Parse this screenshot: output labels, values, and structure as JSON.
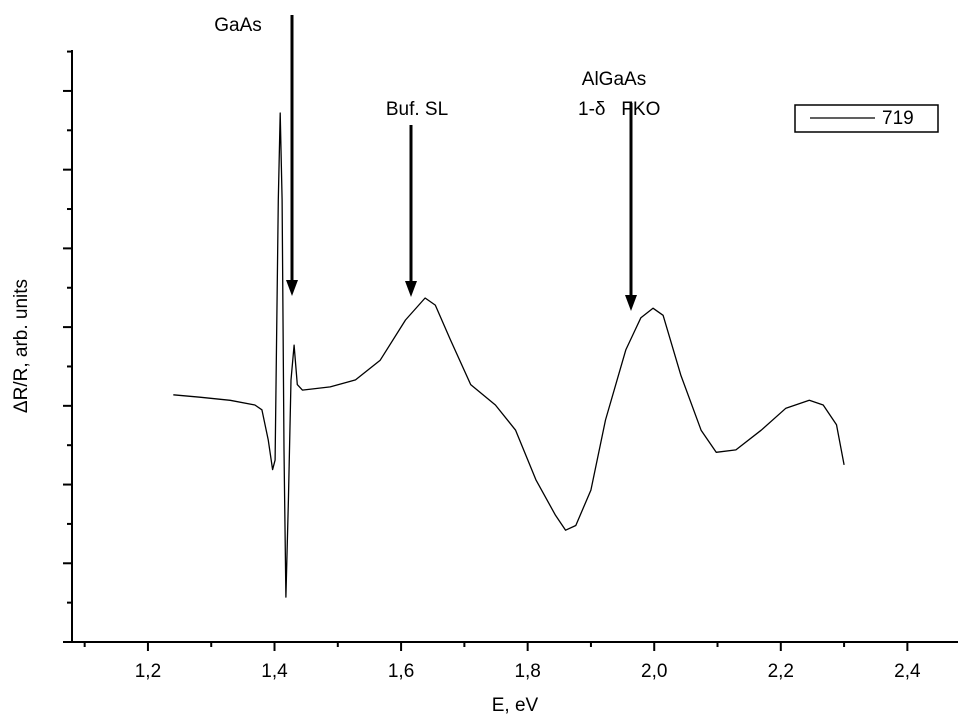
{
  "chart_data": {
    "type": "line",
    "x_label": "E, eV",
    "y_label": "ΔR/R, arb. units",
    "annotations": [
      "GaAs",
      "Buf. SL",
      "AlGaAs",
      "1-δ   FKO"
    ],
    "xlim": [
      1.08,
      2.48
    ],
    "xticks": [
      {
        "value": 1.2,
        "label": "1,2"
      },
      {
        "value": 1.4,
        "label": "1,4"
      },
      {
        "value": 1.6,
        "label": "1,6"
      },
      {
        "value": 1.8,
        "label": "1,8"
      },
      {
        "value": 2.0,
        "label": "2,0"
      },
      {
        "value": 2.2,
        "label": "2,2"
      },
      {
        "value": 2.4,
        "label": "2,4"
      }
    ],
    "ylim": [
      0,
      7.52
    ],
    "yticks": [
      0,
      1,
      2,
      3,
      4,
      5,
      6,
      7
    ],
    "legend": "upper right",
    "x": [
      1.24,
      1.282,
      1.33,
      1.369,
      1.38,
      1.39,
      1.397,
      1.401,
      1.406,
      1.409,
      1.412,
      1.415,
      1.418,
      1.422,
      1.426,
      1.431,
      1.436,
      1.444,
      1.488,
      1.528,
      1.567,
      1.607,
      1.638,
      1.654,
      1.678,
      1.71,
      1.749,
      1.781,
      1.813,
      1.844,
      1.86,
      1.876,
      1.9,
      1.923,
      1.955,
      1.979,
      1.998,
      2.014,
      2.042,
      2.074,
      2.098,
      2.129,
      2.169,
      2.208,
      2.245,
      2.267,
      2.288,
      2.3
    ],
    "series": [
      {
        "name": "719",
        "color": "#000000",
        "values": [
          3.14,
          3.11,
          3.07,
          3.01,
          2.95,
          2.57,
          2.19,
          2.31,
          5.62,
          6.72,
          5.62,
          2.44,
          0.57,
          1.8,
          3.33,
          3.77,
          3.27,
          3.2,
          3.24,
          3.33,
          3.58,
          4.09,
          4.37,
          4.28,
          3.84,
          3.27,
          3.01,
          2.69,
          2.06,
          1.61,
          1.42,
          1.48,
          1.93,
          2.82,
          3.71,
          4.12,
          4.24,
          4.15,
          3.39,
          2.69,
          2.41,
          2.44,
          2.69,
          2.97,
          3.07,
          3.01,
          2.76,
          2.25
        ]
      }
    ]
  }
}
